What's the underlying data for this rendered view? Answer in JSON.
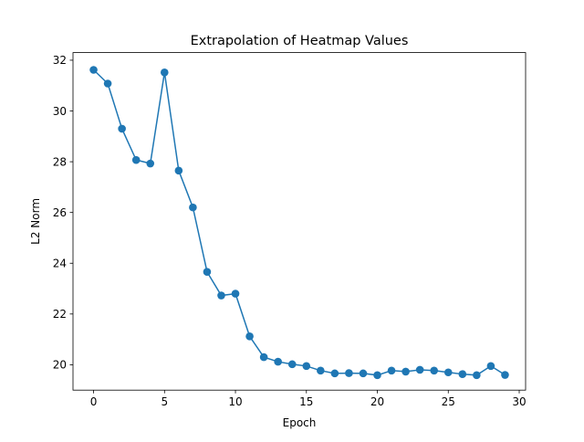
{
  "chart_data": {
    "type": "line",
    "title": "Extrapolation of Heatmap Values",
    "xlabel": "Epoch",
    "ylabel": "L2 Norm",
    "xlim": [
      -1.45,
      30.45
    ],
    "ylim": [
      19.0,
      32.3
    ],
    "xticks": [
      0,
      5,
      10,
      15,
      20,
      25,
      30
    ],
    "yticks": [
      20,
      22,
      24,
      26,
      28,
      30,
      32
    ],
    "grid": false,
    "legend": "none",
    "series": [
      {
        "color": "#1f77b4",
        "marker": "circle",
        "x": [
          0,
          1,
          2,
          3,
          4,
          5,
          6,
          7,
          8,
          9,
          10,
          11,
          12,
          13,
          14,
          15,
          16,
          17,
          18,
          19,
          20,
          21,
          22,
          23,
          24,
          25,
          26,
          27,
          28,
          29
        ],
        "y": [
          31.62,
          31.08,
          29.3,
          28.07,
          27.93,
          31.52,
          27.65,
          26.2,
          23.66,
          22.73,
          22.8,
          21.12,
          20.3,
          20.12,
          20.02,
          19.95,
          19.77,
          19.66,
          19.67,
          19.66,
          19.59,
          19.77,
          19.73,
          19.8,
          19.77,
          19.7,
          19.63,
          19.59,
          19.95,
          19.6
        ]
      }
    ]
  }
}
